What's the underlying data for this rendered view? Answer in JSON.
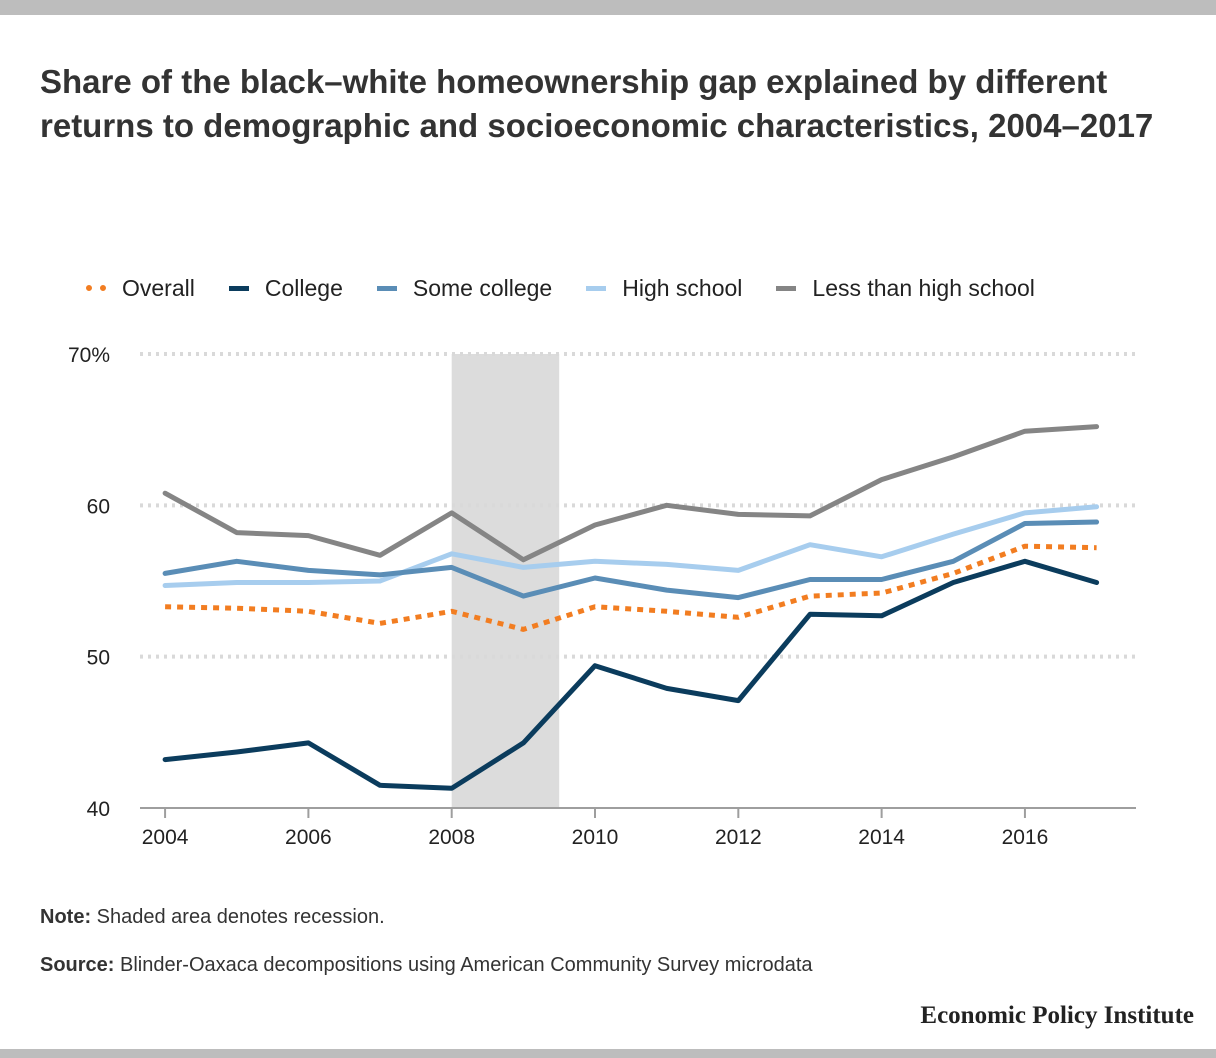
{
  "title": "Share of the black–white homeownership gap explained by different returns to demographic and socioeconomic characteristics, 2004–2017",
  "note_label": "Note:",
  "note_text": " Shaded area denotes recession.",
  "source_label": "Source:",
  "source_text": " Blinder-Oaxaca decompositions using American Community Survey microdata",
  "brand": "Economic Policy Institute",
  "colors": {
    "overall": "#f27d21",
    "college": "#0b3c5d",
    "some_college": "#5a8db6",
    "high_school": "#a7cdee",
    "less_than_high_school": "#858585",
    "recession": "#dcdcdc",
    "grid": "#d9d9d9",
    "axis": "#9e9e9e"
  },
  "chart_data": {
    "type": "line",
    "x": [
      2004,
      2005,
      2006,
      2007,
      2008,
      2009,
      2010,
      2011,
      2012,
      2013,
      2014,
      2015,
      2016,
      2017
    ],
    "xticks": [
      2004,
      2006,
      2008,
      2010,
      2012,
      2014,
      2016
    ],
    "xtick_labels": [
      "2004",
      "2006",
      "2008",
      "2010",
      "2012",
      "2014",
      "2016"
    ],
    "xlim": [
      2003.65,
      2017.55
    ],
    "ylim": [
      40,
      70
    ],
    "yticks": [
      40,
      50,
      60,
      70
    ],
    "ytick_labels": [
      "40",
      "50",
      "60",
      "70%"
    ],
    "grid": true,
    "legend_position": "top",
    "recession": [
      2008,
      2009.5
    ],
    "series": [
      {
        "name": "Overall",
        "key": "overall",
        "style": "dotted",
        "values": [
          53.3,
          53.2,
          53.0,
          52.2,
          53.0,
          51.8,
          53.3,
          53.0,
          52.6,
          54.0,
          54.2,
          55.5,
          57.3,
          57.2
        ]
      },
      {
        "name": "College",
        "key": "college",
        "style": "solid",
        "values": [
          43.2,
          43.7,
          44.3,
          41.5,
          41.3,
          44.3,
          49.4,
          47.9,
          47.1,
          52.8,
          52.7,
          54.9,
          56.3,
          54.9
        ]
      },
      {
        "name": "Some college",
        "key": "some_college",
        "style": "solid",
        "values": [
          55.5,
          56.3,
          55.7,
          55.4,
          55.9,
          54.0,
          55.2,
          54.4,
          53.9,
          55.1,
          55.1,
          56.3,
          58.8,
          58.9
        ]
      },
      {
        "name": "High school",
        "key": "high_school",
        "style": "solid",
        "values": [
          54.7,
          54.9,
          54.9,
          55.0,
          56.8,
          55.9,
          56.3,
          56.1,
          55.7,
          57.4,
          56.6,
          58.1,
          59.5,
          59.9
        ]
      },
      {
        "name": "Less than high school",
        "key": "less_than_high_school",
        "style": "solid",
        "values": [
          60.8,
          58.2,
          58.0,
          56.7,
          59.5,
          56.4,
          58.7,
          60.0,
          59.4,
          59.3,
          61.7,
          63.2,
          64.9,
          65.2
        ]
      }
    ]
  }
}
